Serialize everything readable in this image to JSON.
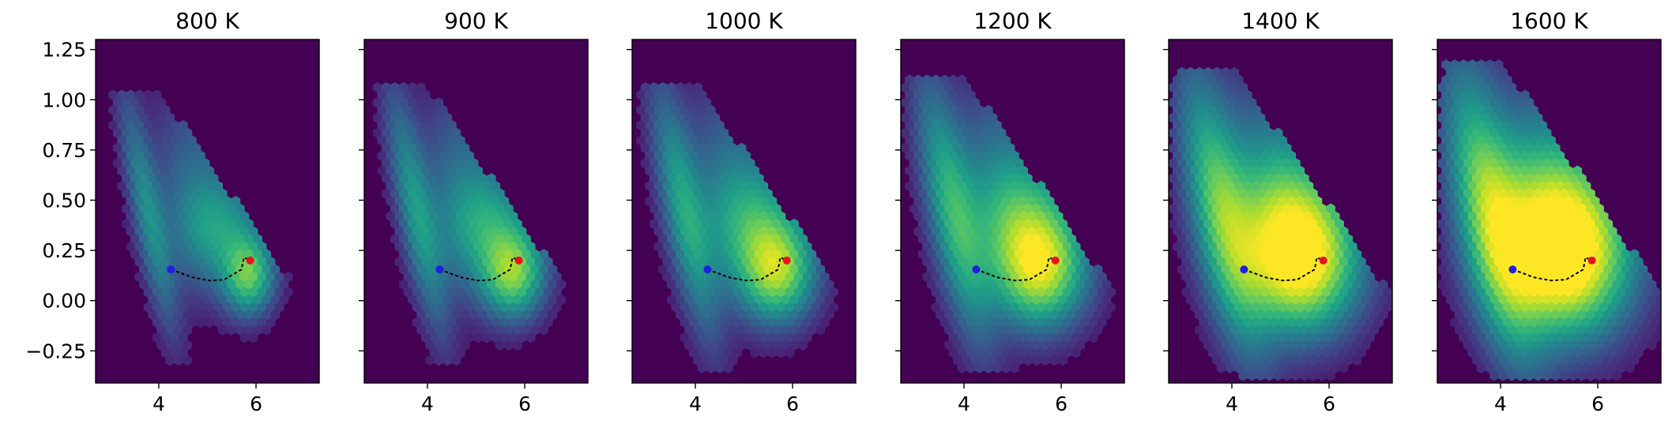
{
  "colors": {
    "background": "#440154",
    "start_point": "#1f1fe0",
    "end_point": "#e8141a",
    "path": "#000000"
  },
  "chart_data": [
    {
      "type": "heatmap",
      "subtype": "hexbin",
      "title": "800 K",
      "xlim": [
        2.7,
        7.3
      ],
      "ylim": [
        -0.41,
        1.3
      ],
      "xticks": [
        {
          "value": 4,
          "label": "4"
        },
        {
          "value": 6,
          "label": "6"
        }
      ],
      "yticks": [
        {
          "value": 1.25,
          "label": "1.25"
        },
        {
          "value": 1.0,
          "label": "1.00"
        },
        {
          "value": 0.75,
          "label": "0.75"
        },
        {
          "value": 0.5,
          "label": "0.50"
        },
        {
          "value": 0.25,
          "label": "0.25"
        },
        {
          "value": 0.0,
          "label": "0.00"
        },
        {
          "value": -0.25,
          "label": "−0.25"
        }
      ],
      "yticklabels_visible": true,
      "grid": false,
      "colormap": "viridis",
      "density_spread": 0.0,
      "path": {
        "x": [
          4.25,
          4.7,
          5.05,
          5.35,
          5.7,
          5.75,
          5.88
        ],
        "y": [
          0.155,
          0.115,
          0.1,
          0.105,
          0.155,
          0.215,
          0.2
        ]
      },
      "start_point": {
        "x": 4.25,
        "y": 0.155
      },
      "end_point": {
        "x": 5.88,
        "y": 0.2
      }
    },
    {
      "type": "heatmap",
      "subtype": "hexbin",
      "title": "900 K",
      "xlim": [
        2.7,
        7.3
      ],
      "ylim": [
        -0.41,
        1.3
      ],
      "xticks": [
        {
          "value": 4,
          "label": "4"
        },
        {
          "value": 6,
          "label": "6"
        }
      ],
      "yticks": [
        {
          "value": 1.25,
          "label": ""
        },
        {
          "value": 1.0,
          "label": ""
        },
        {
          "value": 0.75,
          "label": ""
        },
        {
          "value": 0.5,
          "label": ""
        },
        {
          "value": 0.25,
          "label": ""
        },
        {
          "value": 0.0,
          "label": ""
        },
        {
          "value": -0.25,
          "label": ""
        }
      ],
      "yticklabels_visible": false,
      "grid": false,
      "colormap": "viridis",
      "density_spread": 0.15,
      "path": {
        "x": [
          4.25,
          4.7,
          5.05,
          5.35,
          5.7,
          5.75,
          5.88
        ],
        "y": [
          0.155,
          0.115,
          0.1,
          0.105,
          0.155,
          0.215,
          0.2
        ]
      },
      "start_point": {
        "x": 4.25,
        "y": 0.155
      },
      "end_point": {
        "x": 5.88,
        "y": 0.2
      }
    },
    {
      "type": "heatmap",
      "subtype": "hexbin",
      "title": "1000 K",
      "xlim": [
        2.7,
        7.3
      ],
      "ylim": [
        -0.41,
        1.3
      ],
      "xticks": [
        {
          "value": 4,
          "label": "4"
        },
        {
          "value": 6,
          "label": "6"
        }
      ],
      "yticks": [
        {
          "value": 1.25,
          "label": ""
        },
        {
          "value": 1.0,
          "label": ""
        },
        {
          "value": 0.75,
          "label": ""
        },
        {
          "value": 0.5,
          "label": ""
        },
        {
          "value": 0.25,
          "label": ""
        },
        {
          "value": 0.0,
          "label": ""
        },
        {
          "value": -0.25,
          "label": ""
        }
      ],
      "yticklabels_visible": false,
      "grid": false,
      "colormap": "viridis",
      "density_spread": 0.3,
      "path": {
        "x": [
          4.25,
          4.7,
          5.05,
          5.35,
          5.7,
          5.75,
          5.88
        ],
        "y": [
          0.155,
          0.115,
          0.1,
          0.105,
          0.155,
          0.215,
          0.2
        ]
      },
      "start_point": {
        "x": 4.25,
        "y": 0.155
      },
      "end_point": {
        "x": 5.88,
        "y": 0.2
      }
    },
    {
      "type": "heatmap",
      "subtype": "hexbin",
      "title": "1200 K",
      "xlim": [
        2.7,
        7.3
      ],
      "ylim": [
        -0.41,
        1.3
      ],
      "xticks": [
        {
          "value": 4,
          "label": "4"
        },
        {
          "value": 6,
          "label": "6"
        }
      ],
      "yticks": [
        {
          "value": 1.25,
          "label": ""
        },
        {
          "value": 1.0,
          "label": ""
        },
        {
          "value": 0.75,
          "label": ""
        },
        {
          "value": 0.5,
          "label": ""
        },
        {
          "value": 0.25,
          "label": ""
        },
        {
          "value": 0.0,
          "label": ""
        },
        {
          "value": -0.25,
          "label": ""
        }
      ],
      "yticklabels_visible": false,
      "grid": false,
      "colormap": "viridis",
      "density_spread": 0.5,
      "path": {
        "x": [
          4.25,
          4.7,
          5.05,
          5.35,
          5.7,
          5.75,
          5.88
        ],
        "y": [
          0.155,
          0.115,
          0.1,
          0.105,
          0.155,
          0.215,
          0.2
        ]
      },
      "start_point": {
        "x": 4.25,
        "y": 0.155
      },
      "end_point": {
        "x": 5.88,
        "y": 0.2
      }
    },
    {
      "type": "heatmap",
      "subtype": "hexbin",
      "title": "1400 K",
      "xlim": [
        2.7,
        7.3
      ],
      "ylim": [
        -0.41,
        1.3
      ],
      "xticks": [
        {
          "value": 4,
          "label": "4"
        },
        {
          "value": 6,
          "label": "6"
        }
      ],
      "yticks": [
        {
          "value": 1.25,
          "label": ""
        },
        {
          "value": 1.0,
          "label": ""
        },
        {
          "value": 0.75,
          "label": ""
        },
        {
          "value": 0.5,
          "label": ""
        },
        {
          "value": 0.25,
          "label": ""
        },
        {
          "value": 0.0,
          "label": ""
        },
        {
          "value": -0.25,
          "label": ""
        }
      ],
      "yticklabels_visible": false,
      "grid": false,
      "colormap": "viridis",
      "density_spread": 0.8,
      "path": {
        "x": [
          4.25,
          4.7,
          5.05,
          5.35,
          5.7,
          5.75,
          5.88
        ],
        "y": [
          0.155,
          0.115,
          0.1,
          0.105,
          0.155,
          0.215,
          0.2
        ]
      },
      "start_point": {
        "x": 4.25,
        "y": 0.155
      },
      "end_point": {
        "x": 5.88,
        "y": 0.2
      }
    },
    {
      "type": "heatmap",
      "subtype": "hexbin",
      "title": "1600 K",
      "xlim": [
        2.7,
        7.3
      ],
      "ylim": [
        -0.41,
        1.3
      ],
      "xticks": [
        {
          "value": 4,
          "label": "4"
        },
        {
          "value": 6,
          "label": "6"
        }
      ],
      "yticks": [
        {
          "value": 1.25,
          "label": ""
        },
        {
          "value": 1.0,
          "label": ""
        },
        {
          "value": 0.75,
          "label": ""
        },
        {
          "value": 0.5,
          "label": ""
        },
        {
          "value": 0.25,
          "label": ""
        },
        {
          "value": 0.0,
          "label": ""
        },
        {
          "value": -0.25,
          "label": ""
        }
      ],
      "yticklabels_visible": false,
      "grid": false,
      "colormap": "viridis",
      "density_spread": 1.0,
      "path": {
        "x": [
          4.25,
          4.7,
          5.05,
          5.35,
          5.7,
          5.75,
          5.88
        ],
        "y": [
          0.155,
          0.115,
          0.1,
          0.105,
          0.155,
          0.215,
          0.2
        ]
      },
      "start_point": {
        "x": 4.25,
        "y": 0.155
      },
      "end_point": {
        "x": 5.88,
        "y": 0.2
      }
    }
  ]
}
